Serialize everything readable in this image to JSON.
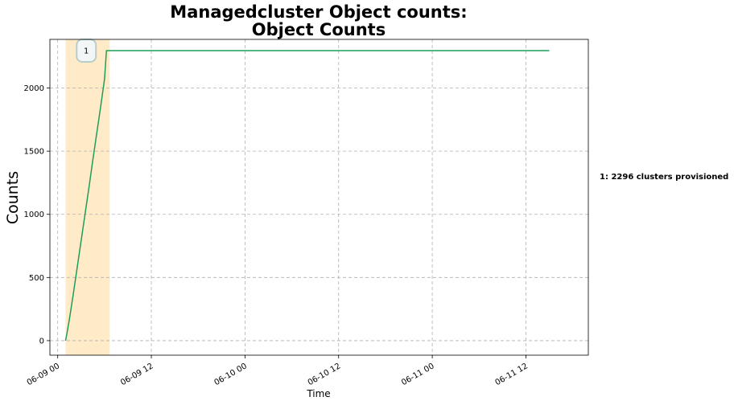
{
  "chart_data": {
    "type": "line",
    "title": "Managedcluster Object counts:",
    "subtitle": "Object Counts",
    "xlabel": "Time",
    "ylabel": "Counts",
    "x_range": [
      "2021-06-08T23:00",
      "2021-06-11T20:00"
    ],
    "ylim": [
      -115,
      2385
    ],
    "yticks": [
      0,
      500,
      1000,
      1500,
      2000
    ],
    "xticks": [
      "2021-06-09T00:00",
      "2021-06-09T12:00",
      "2021-06-10T00:00",
      "2021-06-10T12:00",
      "2021-06-11T00:00",
      "2021-06-11T12:00"
    ],
    "xtick_labels": [
      "06-09 00",
      "06-09 12",
      "06-10 00",
      "06-10 12",
      "06-11 00",
      "06-11 12"
    ],
    "grid": true,
    "line_color": "#1f9e5a",
    "series": [
      {
        "x": [
          "2021-06-09T01:00",
          "2021-06-09T01:10",
          "2021-06-09T01:30",
          "2021-06-09T02:00",
          "2021-06-09T02:30",
          "2021-06-09T03:00",
          "2021-06-09T03:30",
          "2021-06-09T04:00",
          "2021-06-09T04:30",
          "2021-06-09T05:00",
          "2021-06-09T05:30",
          "2021-06-09T06:00",
          "2021-06-09T06:15",
          "2021-06-09T07:00",
          "2021-06-09T12:00",
          "2021-06-10T00:00",
          "2021-06-10T12:00",
          "2021-06-11T00:00",
          "2021-06-11T12:00",
          "2021-06-11T15:00"
        ],
        "y": [
          0,
          50,
          170,
          370,
          580,
          790,
          1000,
          1210,
          1430,
          1640,
          1850,
          2070,
          2296,
          2296,
          2296,
          2296,
          2296,
          2296,
          2296,
          2296
        ]
      }
    ],
    "highlight_region": {
      "x_start": "2021-06-09T01:00",
      "x_end": "2021-06-09T06:40",
      "color": "#ffebc8"
    },
    "annotation_marker": {
      "label": "1",
      "x": "2021-06-09T03:40",
      "y": 2296
    },
    "annotation_note": "1: 2296 clusters provisioned"
  }
}
